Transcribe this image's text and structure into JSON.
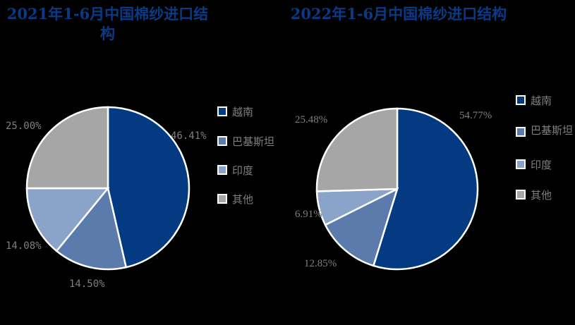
{
  "chart_data": [
    {
      "type": "pie",
      "title": "2021年1-6月中国棉纱进口结构",
      "categories": [
        "越南",
        "巴基斯坦",
        "印度",
        "其他"
      ],
      "values": [
        46.41,
        14.5,
        14.08,
        25.0
      ],
      "labels": [
        "46.41%",
        "14.50%",
        "14.08%",
        "25.00%"
      ],
      "colors": [
        "#033a82",
        "#5b7bad",
        "#8aa3c8",
        "#a6a6a6"
      ],
      "legend_position": "right"
    },
    {
      "type": "pie",
      "title": "2022年1-6月中国棉纱进口结构",
      "categories": [
        "越南",
        "巴基斯坦",
        "印度",
        "其他"
      ],
      "values": [
        54.77,
        12.85,
        6.91,
        25.48
      ],
      "labels": [
        "54.77%",
        "12.85%",
        "6.91%",
        "25.48%"
      ],
      "colors": [
        "#033a82",
        "#5b7bad",
        "#8aa3c8",
        "#a6a6a6"
      ],
      "legend_position": "right"
    }
  ],
  "charts": [
    {
      "title": "2021年1-6月中国棉纱进口结构",
      "labels": [
        "46.41%",
        "14.50%",
        "14.08%",
        "25.00%"
      ],
      "legend": [
        "越南",
        "巴基斯坦",
        "印度",
        "其他"
      ]
    },
    {
      "title": "2022年1-6月中国棉纱进口结构",
      "labels": [
        "54.77%",
        "12.85%",
        "6.91%",
        "25.48%"
      ],
      "legend": [
        "越南",
        "巴基斯坦",
        "印度",
        "其他"
      ]
    }
  ]
}
